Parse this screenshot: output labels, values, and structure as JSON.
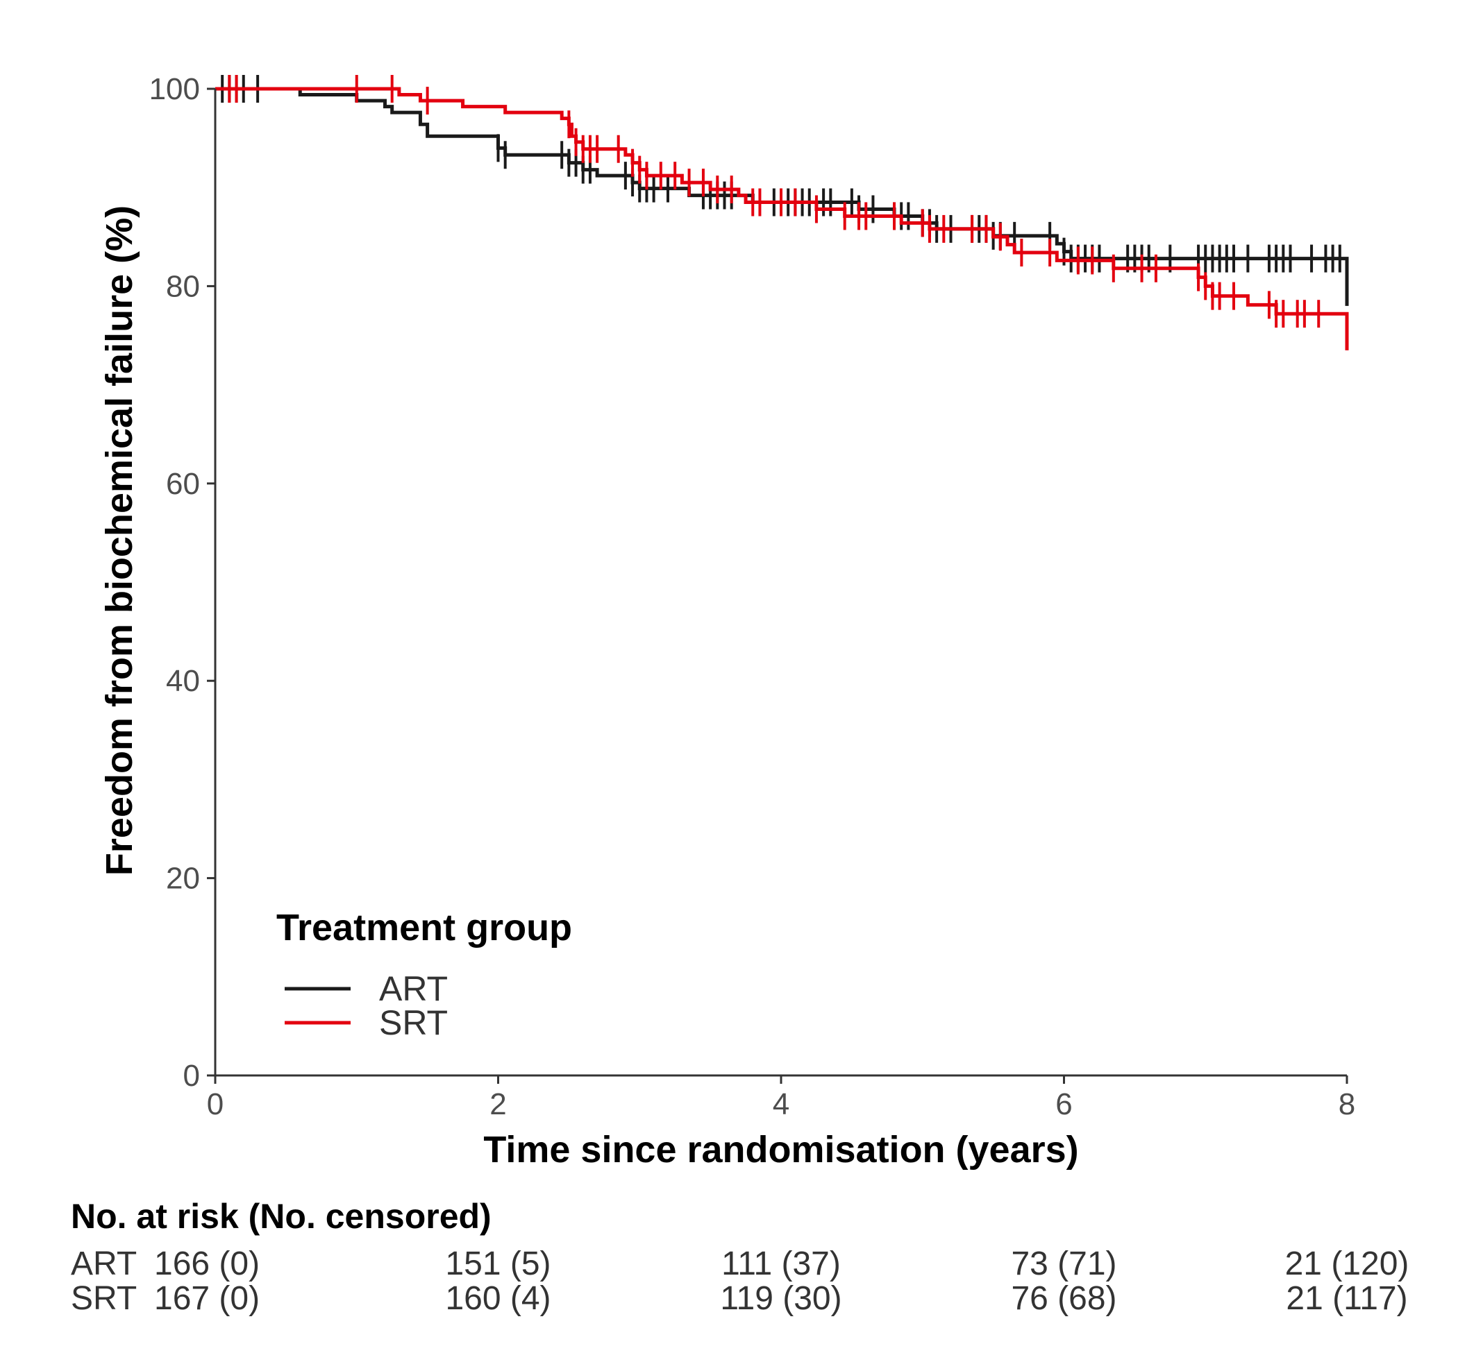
{
  "chart_data": {
    "type": "line",
    "subtype": "kaplan-meier",
    "xlabel": "Time since randomisation (years)",
    "ylabel": "Freedom from biochemical failure (%)",
    "xlim": [
      0,
      8
    ],
    "ylim": [
      0,
      100
    ],
    "xticks": [
      0,
      2,
      4,
      6,
      8
    ],
    "yticks": [
      0,
      20,
      40,
      60,
      80,
      100
    ],
    "grid": false,
    "legend": {
      "title": "Treatment group",
      "position": "bottom-left",
      "entries": [
        "ART",
        "SRT"
      ]
    },
    "series": [
      {
        "name": "ART",
        "color": "#1a1a1a",
        "steps": [
          [
            0,
            100
          ],
          [
            0.6,
            99.4
          ],
          [
            1.0,
            98.8
          ],
          [
            1.2,
            98.2
          ],
          [
            1.25,
            97.6
          ],
          [
            1.45,
            96.4
          ],
          [
            1.5,
            95.2
          ],
          [
            2.0,
            94.0
          ],
          [
            2.05,
            93.3
          ],
          [
            2.5,
            92.5
          ],
          [
            2.6,
            91.8
          ],
          [
            2.7,
            91.2
          ],
          [
            2.95,
            90.5
          ],
          [
            3.0,
            89.9
          ],
          [
            3.35,
            89.2
          ],
          [
            3.8,
            88.5
          ],
          [
            4.55,
            87.8
          ],
          [
            4.8,
            87.1
          ],
          [
            5.0,
            86.4
          ],
          [
            5.1,
            85.8
          ],
          [
            5.5,
            85.1
          ],
          [
            5.95,
            84.3
          ],
          [
            6.0,
            83.5
          ],
          [
            6.05,
            82.8
          ],
          [
            8.0,
            78.0
          ]
        ],
        "censored": [
          0.05,
          0.1,
          0.15,
          0.2,
          0.3,
          2.0,
          2.05,
          2.45,
          2.5,
          2.55,
          2.6,
          2.65,
          2.9,
          2.95,
          3.0,
          3.05,
          3.1,
          3.2,
          3.45,
          3.5,
          3.55,
          3.6,
          3.65,
          3.95,
          4.0,
          4.05,
          4.1,
          4.15,
          4.2,
          4.3,
          4.35,
          4.5,
          4.55,
          4.65,
          4.8,
          4.85,
          4.9,
          5.0,
          5.05,
          5.1,
          5.2,
          5.35,
          5.4,
          5.45,
          5.5,
          5.55,
          5.65,
          5.9,
          6.0,
          6.05,
          6.1,
          6.15,
          6.2,
          6.25,
          6.45,
          6.5,
          6.55,
          6.6,
          6.75,
          6.95,
          7.0,
          7.05,
          7.1,
          7.15,
          7.2,
          7.3,
          7.45,
          7.5,
          7.55,
          7.6,
          7.75,
          7.85,
          7.9,
          7.95
        ]
      },
      {
        "name": "SRT",
        "color": "#e3000f",
        "steps": [
          [
            0,
            100
          ],
          [
            1.3,
            99.4
          ],
          [
            1.45,
            98.8
          ],
          [
            1.75,
            98.2
          ],
          [
            2.05,
            97.6
          ],
          [
            2.45,
            97.0
          ],
          [
            2.5,
            96.4
          ],
          [
            2.52,
            95.2
          ],
          [
            2.55,
            94.6
          ],
          [
            2.6,
            93.9
          ],
          [
            2.9,
            93.3
          ],
          [
            2.95,
            92.5
          ],
          [
            3.0,
            91.8
          ],
          [
            3.05,
            91.2
          ],
          [
            3.3,
            90.5
          ],
          [
            3.5,
            89.8
          ],
          [
            3.7,
            89.2
          ],
          [
            3.75,
            88.5
          ],
          [
            4.25,
            87.8
          ],
          [
            4.45,
            87.1
          ],
          [
            4.85,
            86.4
          ],
          [
            5.05,
            85.8
          ],
          [
            5.5,
            85.0
          ],
          [
            5.6,
            84.2
          ],
          [
            5.65,
            83.4
          ],
          [
            5.95,
            82.6
          ],
          [
            6.35,
            81.8
          ],
          [
            6.95,
            80.9
          ],
          [
            7.0,
            80.0
          ],
          [
            7.05,
            79.0
          ],
          [
            7.3,
            78.1
          ],
          [
            7.5,
            77.2
          ],
          [
            8.0,
            73.5
          ]
        ],
        "censored": [
          0.1,
          0.15,
          1.0,
          1.25,
          1.5,
          2.5,
          2.55,
          2.6,
          2.65,
          2.7,
          2.85,
          2.95,
          3.0,
          3.05,
          3.15,
          3.25,
          3.35,
          3.45,
          3.55,
          3.65,
          3.8,
          3.85,
          4.0,
          4.1,
          4.25,
          4.45,
          4.55,
          4.6,
          4.8,
          5.0,
          5.05,
          5.15,
          5.35,
          5.45,
          5.55,
          5.7,
          5.9,
          6.1,
          6.2,
          6.35,
          6.55,
          6.65,
          6.95,
          7.0,
          7.05,
          7.1,
          7.2,
          7.45,
          7.5,
          7.55,
          7.65,
          7.7,
          7.8
        ]
      }
    ],
    "risk_table": {
      "title": "No. at risk (No. censored)",
      "timepoints": [
        0,
        2,
        4,
        6,
        8
      ],
      "rows": [
        {
          "group": "ART",
          "cells": [
            "166 (0)",
            "151 (5)",
            "111 (37)",
            "73 (71)",
            "21 (120)"
          ]
        },
        {
          "group": "SRT",
          "cells": [
            "167 (0)",
            "160 (4)",
            "119 (30)",
            "76 (68)",
            "21 (117)"
          ]
        }
      ]
    }
  }
}
